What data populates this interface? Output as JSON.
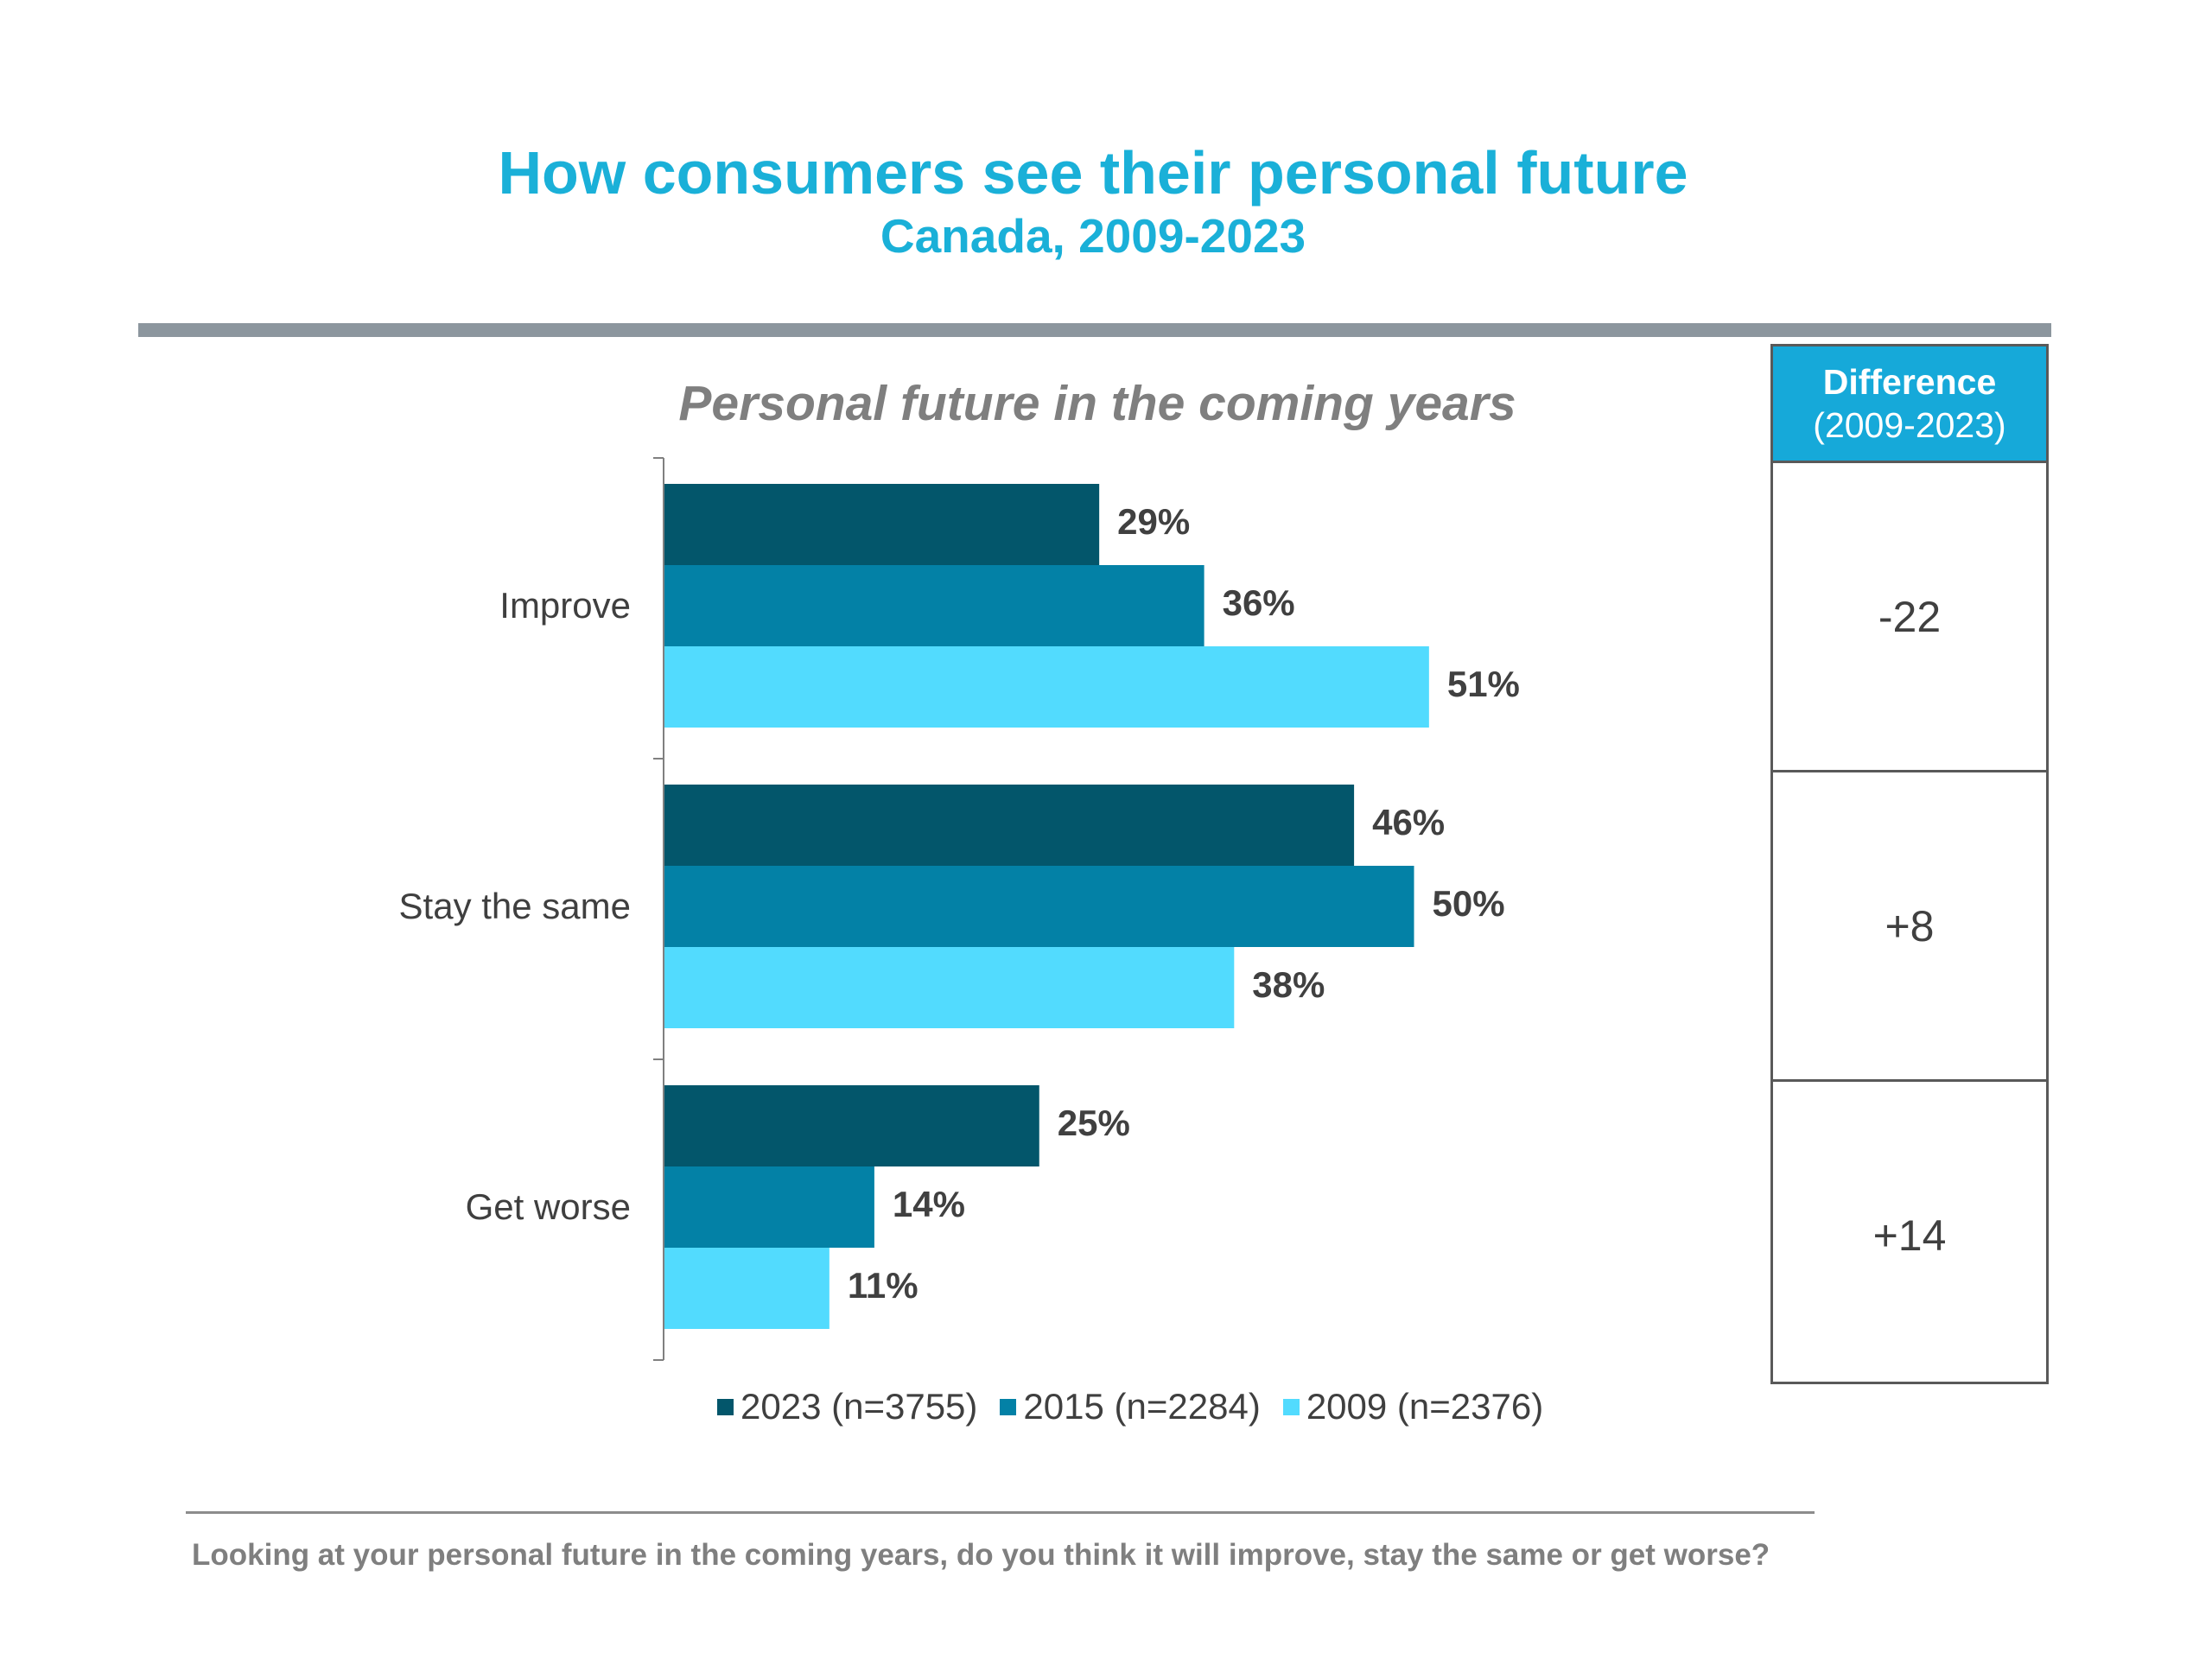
{
  "header": {
    "title": "How consumers see their personal future",
    "subtitle": "Canada, 2009-2023",
    "accent_color": "#1ab0d8",
    "rule_color": "#8c969e"
  },
  "chart_data": {
    "type": "bar",
    "orientation": "horizontal",
    "title": "Personal future in the coming years",
    "categories": [
      "Improve",
      "Stay the same",
      "Get worse"
    ],
    "series": [
      {
        "name": "2023 (n=3755)",
        "color": "#03566b",
        "values": [
          29,
          46,
          25
        ]
      },
      {
        "name": "2015 (n=2284)",
        "color": "#0381a6",
        "values": [
          36,
          50,
          14
        ]
      },
      {
        "name": "2009 (n=2376)",
        "color": "#52dbfe",
        "values": [
          51,
          38,
          11
        ]
      }
    ],
    "value_suffix": "%",
    "xlim": [
      0,
      100
    ],
    "grid": false,
    "legend_position": "bottom"
  },
  "difference_table": {
    "header_title": "Difference",
    "header_subtitle": "(2009-2023)",
    "header_color": "#16a9d9",
    "values": [
      "-22",
      "+8",
      "+14"
    ]
  },
  "footnote": "Looking at your personal future in the coming years, do you think it will improve, stay the same or get worse?"
}
